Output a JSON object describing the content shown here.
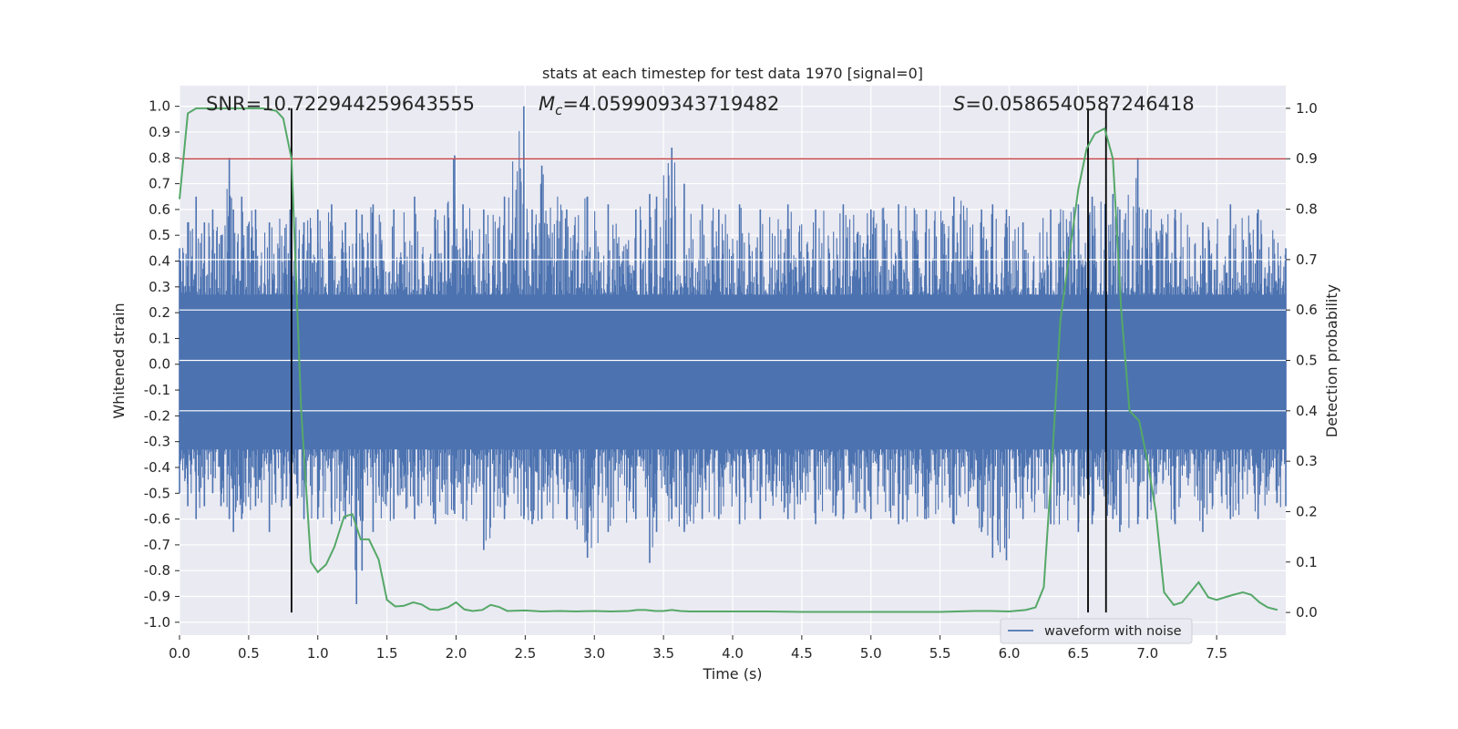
{
  "chart_data": {
    "type": "line",
    "title": "stats at each timestep for test data 1970 [signal=0]",
    "xlabel": "Time (s)",
    "ylabel": "Whitened strain",
    "y2label": "Detection probability",
    "xlim": [
      0,
      8.0
    ],
    "ylim": [
      -1.05,
      1.08
    ],
    "y2lim": [
      -0.045,
      1.045
    ],
    "xticks": [
      "0.0",
      "0.5",
      "1.0",
      "1.5",
      "2.0",
      "2.5",
      "3.0",
      "3.5",
      "4.0",
      "4.5",
      "5.0",
      "5.5",
      "6.0",
      "6.5",
      "7.0",
      "7.5"
    ],
    "yticks": [
      "1.0",
      "0.9",
      "0.8",
      "0.7",
      "0.6",
      "0.5",
      "0.4",
      "0.3",
      "0.2",
      "0.1",
      "0.0",
      "-0.1",
      "-0.2",
      "-0.3",
      "-0.4",
      "-0.5",
      "-0.6",
      "-0.7",
      "-0.8",
      "-0.9",
      "-1.0"
    ],
    "y2ticks": [
      "1.0",
      "0.9",
      "0.8",
      "0.7",
      "0.6",
      "0.5",
      "0.4",
      "0.3",
      "0.2",
      "0.1",
      "0.0"
    ],
    "grid": true,
    "legend_placement": "lower-right",
    "annotations": {
      "snr": "SNR=10.722944259643555",
      "mc_symbol": "M",
      "mc_sub": "c",
      "mc_value": "=4.059909343719482",
      "s_symbol": "S",
      "s_value": "=0.0586540587246418"
    },
    "threshold": {
      "y2": 0.9,
      "color": "#c44e52"
    },
    "vlines": [
      0.81,
      6.57,
      6.7
    ],
    "series": [
      {
        "name": "waveform with noise",
        "color": "#4c72b0",
        "envelope_x": [
          0.0,
          0.06,
          0.12,
          0.18,
          0.24,
          0.3,
          0.36,
          0.39,
          0.45,
          0.55,
          0.65,
          0.8,
          0.9,
          1.0,
          1.1,
          1.2,
          1.28,
          1.32,
          1.4,
          1.55,
          1.7,
          1.85,
          1.99,
          2.05,
          2.2,
          2.35,
          2.49,
          2.55,
          2.62,
          2.8,
          2.95,
          3.1,
          3.3,
          3.4,
          3.45,
          3.56,
          3.65,
          3.78,
          3.9,
          4.05,
          4.2,
          4.4,
          4.6,
          4.8,
          5.0,
          5.2,
          5.4,
          5.6,
          5.8,
          5.88,
          5.98,
          6.1,
          6.3,
          6.5,
          6.6,
          6.75,
          6.8,
          6.93,
          7.0,
          7.2,
          7.4,
          7.6,
          7.8,
          8.0
        ],
        "upper": [
          0.45,
          0.55,
          0.65,
          0.55,
          0.6,
          0.5,
          0.8,
          0.6,
          0.65,
          0.6,
          0.55,
          0.6,
          0.55,
          0.6,
          0.62,
          0.55,
          0.6,
          0.58,
          0.62,
          0.6,
          0.65,
          0.6,
          0.81,
          0.62,
          0.6,
          0.65,
          1.0,
          0.6,
          0.77,
          0.6,
          0.65,
          0.62,
          0.6,
          0.66,
          0.65,
          0.84,
          0.7,
          0.62,
          0.6,
          0.62,
          0.6,
          0.62,
          0.6,
          0.62,
          0.6,
          0.62,
          0.6,
          0.65,
          0.6,
          0.62,
          0.6,
          0.55,
          0.6,
          0.62,
          0.65,
          0.66,
          0.6,
          0.8,
          0.6,
          0.6,
          0.55,
          0.62,
          0.6,
          0.45
        ],
        "lower": [
          -0.5,
          -0.55,
          -0.6,
          -0.55,
          -0.5,
          -0.55,
          -0.6,
          -0.65,
          -0.6,
          -0.55,
          -0.65,
          -0.55,
          -0.6,
          -0.6,
          -0.62,
          -0.6,
          -0.93,
          -0.8,
          -0.65,
          -0.6,
          -0.6,
          -0.62,
          -0.58,
          -0.6,
          -0.72,
          -0.6,
          -0.6,
          -0.62,
          -0.6,
          -0.6,
          -0.75,
          -0.65,
          -0.6,
          -0.77,
          -0.65,
          -0.6,
          -0.65,
          -0.6,
          -0.6,
          -0.62,
          -0.6,
          -0.6,
          -0.62,
          -0.6,
          -0.6,
          -0.62,
          -0.6,
          -0.62,
          -0.65,
          -0.75,
          -0.76,
          -0.6,
          -0.62,
          -0.65,
          -0.62,
          -0.6,
          -0.65,
          -0.62,
          -0.6,
          -0.62,
          -0.65,
          -0.6,
          -0.6,
          -0.55
        ]
      },
      {
        "name": "",
        "axis": "right",
        "color": "#55a868",
        "x": [
          0.0,
          0.06,
          0.12,
          0.2,
          0.3,
          0.4,
          0.5,
          0.6,
          0.7,
          0.75,
          0.81,
          0.88,
          0.95,
          1.0,
          1.06,
          1.12,
          1.19,
          1.25,
          1.31,
          1.37,
          1.44,
          1.5,
          1.56,
          1.62,
          1.69,
          1.75,
          1.81,
          1.87,
          1.94,
          2.0,
          2.06,
          2.12,
          2.19,
          2.25,
          2.31,
          2.37,
          2.5,
          2.62,
          2.75,
          2.87,
          3.0,
          3.12,
          3.25,
          3.31,
          3.37,
          3.44,
          3.5,
          3.56,
          3.62,
          3.69,
          3.75,
          3.87,
          4.0,
          4.12,
          4.25,
          4.5,
          4.75,
          5.0,
          5.25,
          5.5,
          5.75,
          5.87,
          6.0,
          6.12,
          6.19,
          6.25,
          6.31,
          6.37,
          6.44,
          6.5,
          6.56,
          6.62,
          6.69,
          6.75,
          6.81,
          6.87,
          6.94,
          7.0,
          7.06,
          7.12,
          7.19,
          7.25,
          7.31,
          7.37,
          7.44,
          7.5,
          7.56,
          7.62,
          7.69,
          7.75,
          7.81,
          7.87,
          7.94
        ],
        "values": [
          0.82,
          0.99,
          1.0,
          1.0,
          1.0,
          1.0,
          1.0,
          1.0,
          0.995,
          0.98,
          0.9,
          0.4,
          0.1,
          0.08,
          0.095,
          0.13,
          0.19,
          0.195,
          0.145,
          0.145,
          0.105,
          0.025,
          0.012,
          0.013,
          0.02,
          0.016,
          0.006,
          0.005,
          0.01,
          0.02,
          0.006,
          0.003,
          0.005,
          0.015,
          0.011,
          0.003,
          0.004,
          0.002,
          0.003,
          0.002,
          0.003,
          0.002,
          0.003,
          0.005,
          0.005,
          0.003,
          0.003,
          0.005,
          0.003,
          0.002,
          0.002,
          0.002,
          0.002,
          0.002,
          0.002,
          0.001,
          0.001,
          0.001,
          0.001,
          0.001,
          0.003,
          0.003,
          0.002,
          0.005,
          0.01,
          0.05,
          0.3,
          0.58,
          0.72,
          0.84,
          0.92,
          0.95,
          0.96,
          0.9,
          0.6,
          0.4,
          0.38,
          0.3,
          0.2,
          0.04,
          0.015,
          0.02,
          0.04,
          0.06,
          0.03,
          0.025,
          0.03,
          0.035,
          0.04,
          0.035,
          0.02,
          0.01,
          0.005
        ]
      }
    ]
  }
}
